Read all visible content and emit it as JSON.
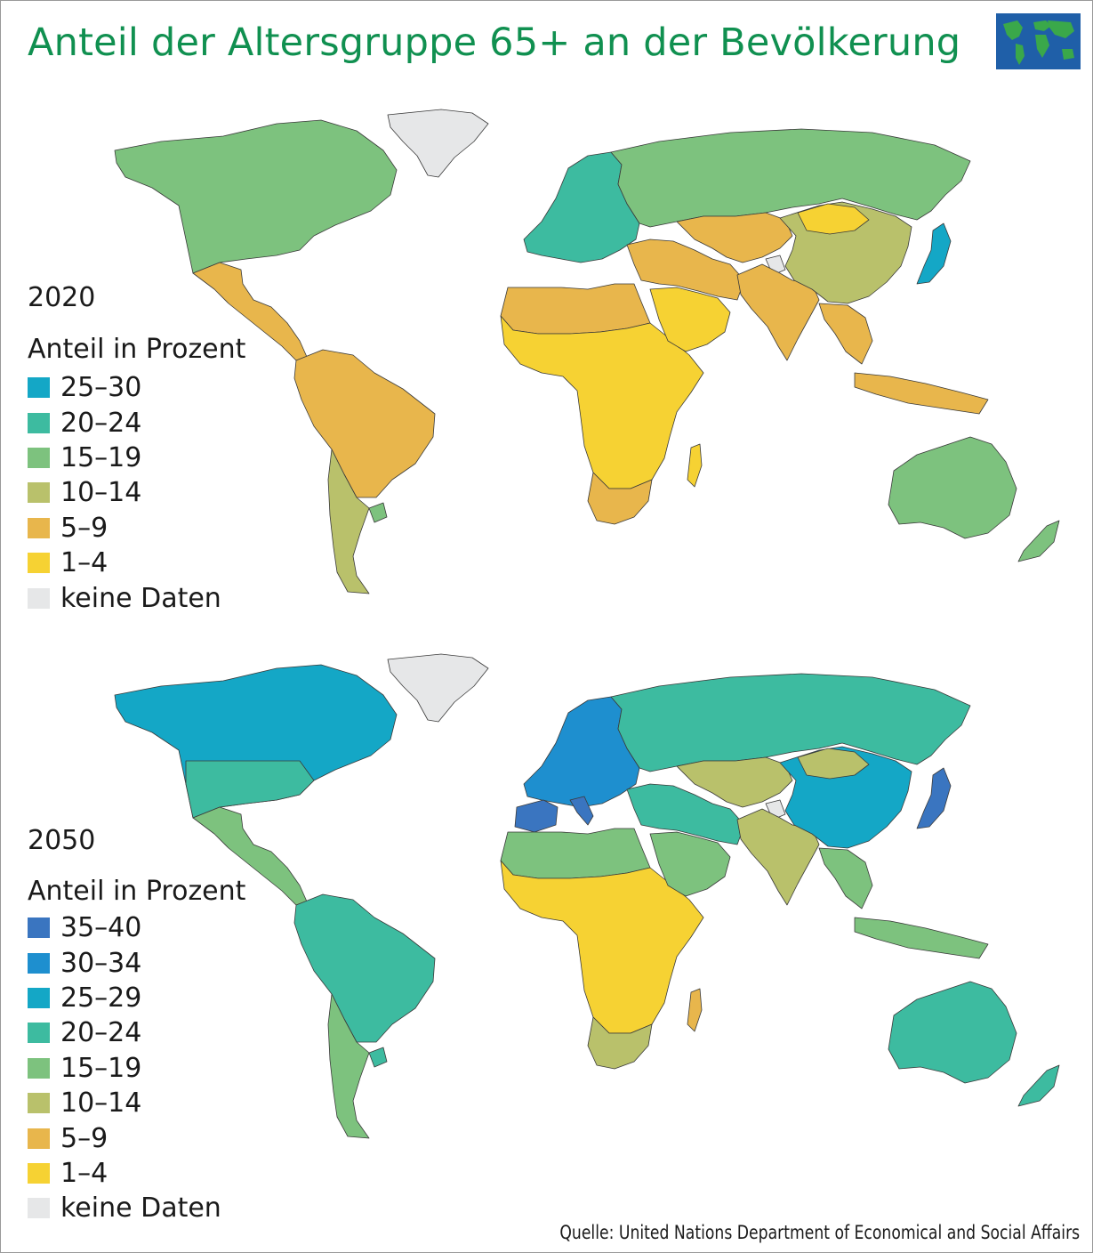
{
  "title": "Anteil der Altersgruppe 65+ an der Bevölkerung",
  "logo": {
    "icon": "world-map-icon",
    "ocean_color": "#1f5fa8",
    "land_color": "#3aa84a"
  },
  "map_2020": {
    "year": "2020",
    "legend_title": "Anteil in Prozent",
    "legend": [
      {
        "label": "25–30",
        "color": "#14a7c6"
      },
      {
        "label": "20–24",
        "color": "#3dbba0"
      },
      {
        "label": "15–19",
        "color": "#7dc27e"
      },
      {
        "label": "10–14",
        "color": "#b9c16b"
      },
      {
        "label": "5–9",
        "color": "#e8b64c"
      },
      {
        "label": "1–4",
        "color": "#f6d233"
      },
      {
        "label": "keine Daten",
        "color": "#e6e7e8"
      }
    ],
    "regions": {
      "greenland": "keine Daten",
      "north-america": "15–19",
      "mexico-central-america": "5–9",
      "south-america": "5–9",
      "southern-cone": "10–14",
      "uruguay": "15–19",
      "europe": "20–24",
      "russia": "15–19",
      "north-africa": "5–9",
      "sub-saharan-africa": "1–4",
      "southern-africa": "5–9",
      "middle-east": "5–9",
      "arabian-peninsula": "1–4",
      "central-asia": "5–9",
      "kashmir": "keine Daten",
      "south-asia": "5–9",
      "china": "10–14",
      "mongolia": "1–4",
      "japan": "25–30",
      "southeast-asia": "5–9",
      "australia": "15–19",
      "new-zealand": "15–19",
      "madagascar": "1–4"
    }
  },
  "map_2050": {
    "year": "2050",
    "legend_title": "Anteil in Prozent",
    "legend": [
      {
        "label": "35–40",
        "color": "#3a75c0"
      },
      {
        "label": "30–34",
        "color": "#1e8fcf"
      },
      {
        "label": "25–29",
        "color": "#14a7c6"
      },
      {
        "label": "20–24",
        "color": "#3dbba0"
      },
      {
        "label": "15–19",
        "color": "#7dc27e"
      },
      {
        "label": "10–14",
        "color": "#b9c16b"
      },
      {
        "label": "5–9",
        "color": "#e8b64c"
      },
      {
        "label": "1–4",
        "color": "#f6d233"
      },
      {
        "label": "keine Daten",
        "color": "#e6e7e8"
      }
    ],
    "regions": {
      "greenland": "keine Daten",
      "north-america": "25–29",
      "usa": "20–24",
      "mexico-central-america": "15–19",
      "south-america": "20–24",
      "southern-cone": "15–19",
      "uruguay": "20–24",
      "europe": "30–34",
      "iberia-italy": "35–40",
      "russia": "20–24",
      "north-africa": "15–19",
      "sub-saharan-africa": "1–4",
      "southern-africa": "10–14",
      "middle-east": "20–24",
      "arabian-peninsula": "15–19",
      "central-asia": "10–14",
      "kashmir": "keine Daten",
      "south-asia": "10–14",
      "china": "25–29",
      "mongolia": "10–14",
      "japan": "35–40",
      "southeast-asia": "15–19",
      "australia": "20–24",
      "new-zealand": "20–24",
      "madagascar": "5–9"
    }
  },
  "source": "Quelle: United Nations Department of Economical and Social Affairs"
}
